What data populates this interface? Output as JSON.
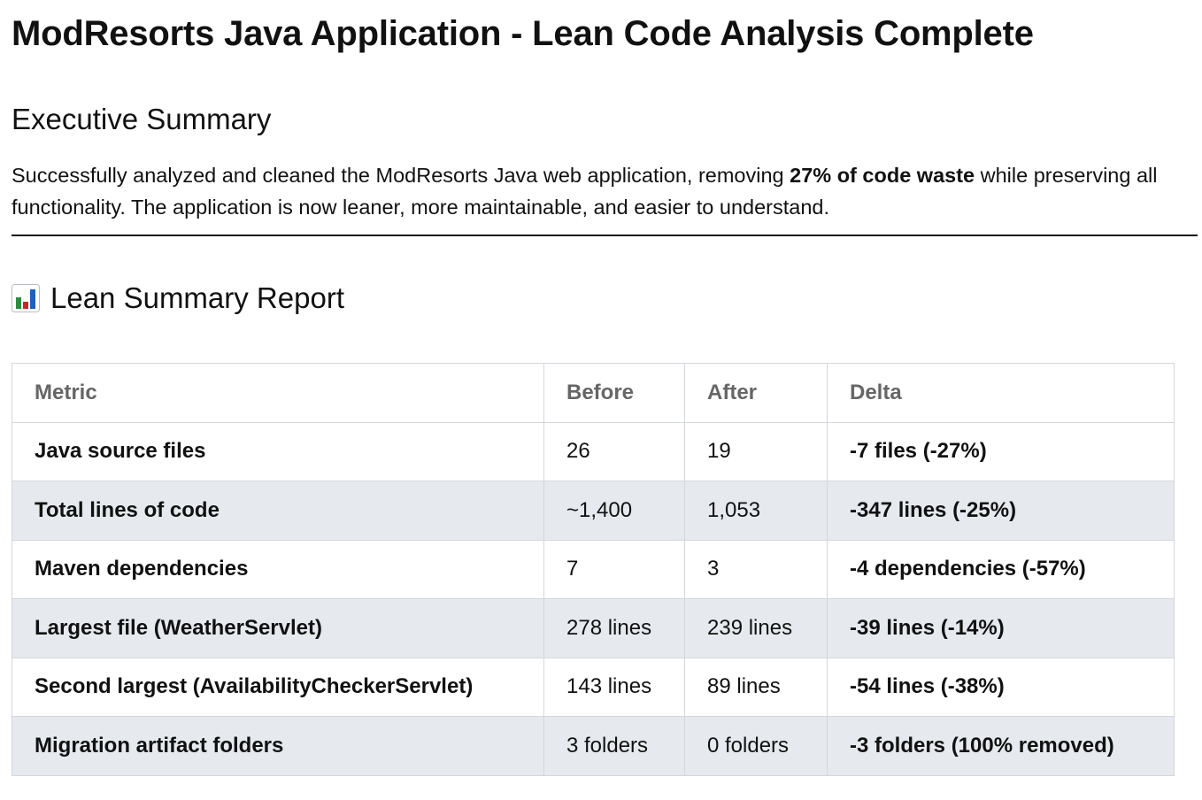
{
  "title": "ModResorts Java Application - Lean Code Analysis Complete",
  "executive_summary": {
    "heading": "Executive Summary",
    "text_before": "Successfully analyzed and cleaned the ModResorts Java web application, removing ",
    "text_bold": "27% of code waste",
    "text_after": " while preserving all functionality. The application is now leaner, more maintainable, and easier to understand."
  },
  "report": {
    "heading": "Lean Summary Report",
    "heading_icon": "bar-chart-emoji",
    "icon_colors": [
      "#2e8b3e",
      "#c62828",
      "#1f5fbf"
    ],
    "table": {
      "headers": [
        "Metric",
        "Before",
        "After",
        "Delta"
      ],
      "rows": [
        {
          "metric": "Java source files",
          "before": "26",
          "after": "19",
          "delta": "-7 files (-27%)"
        },
        {
          "metric": "Total lines of code",
          "before": "~1,400",
          "after": "1,053",
          "delta": "-347 lines (-25%)"
        },
        {
          "metric": "Maven dependencies",
          "before": "7",
          "after": "3",
          "delta": "-4 dependencies (-57%)"
        },
        {
          "metric": "Largest file (WeatherServlet)",
          "before": "278 lines",
          "after": "239 lines",
          "delta": "-39 lines (-14%)"
        },
        {
          "metric": "Second largest (AvailabilityCheckerServlet)",
          "before": "143 lines",
          "after": "89 lines",
          "delta": "-54 lines (-38%)"
        },
        {
          "metric": "Migration artifact folders",
          "before": "3 folders",
          "after": "0 folders",
          "delta": "-3 folders (100% removed)"
        }
      ]
    }
  }
}
